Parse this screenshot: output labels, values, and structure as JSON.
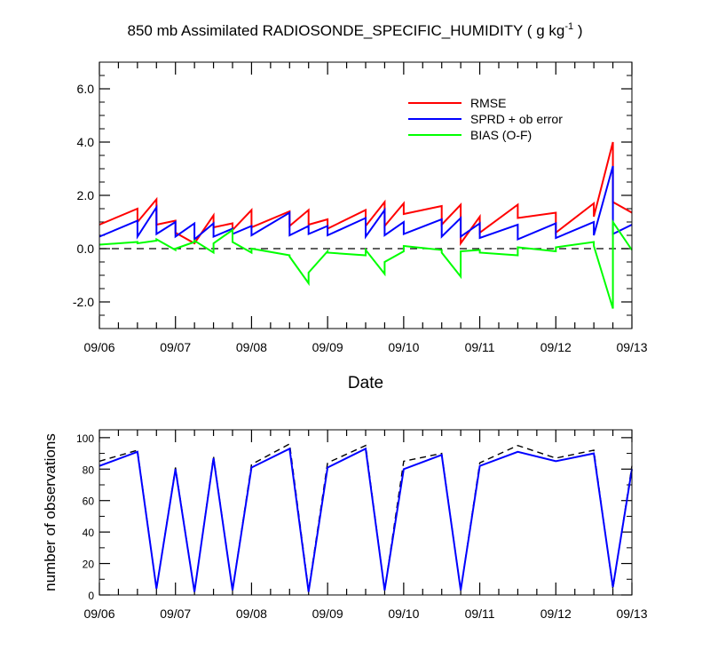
{
  "chart_data": [
    {
      "type": "line",
      "title": "850 mb Assimilated RADIOSONDE_SPECIFIC_HUMIDITY ( g kg",
      "title_sup": "-1",
      "title_end": " )",
      "xlabel": "Date",
      "ylabel": "",
      "x_tick_labels": [
        "09/06",
        "09/07",
        "09/08",
        "09/09",
        "09/10",
        "09/11",
        "09/12",
        "09/13"
      ],
      "y_tick_labels": [
        "6.0",
        "4.0",
        "2.0",
        "0.0",
        "-2.0"
      ],
      "y_tick_values": [
        6,
        4,
        2,
        0,
        -2
      ],
      "xlim": [
        0,
        7
      ],
      "ylim": [
        -3,
        7
      ],
      "legend": [
        "RMSE",
        "SPRD + ob error",
        "BIAS (O-F)"
      ],
      "legend_position": "top-right",
      "reference_line": 0,
      "series": [
        {
          "name": "RMSE",
          "color": "#ff0000",
          "points": [
            [
              0,
              0.9
            ],
            [
              0.5,
              1.5
            ],
            [
              0.5,
              1.0
            ],
            [
              0.75,
              1.85
            ],
            [
              0.75,
              0.9
            ],
            [
              1.0,
              1.05
            ],
            [
              1.0,
              0.6
            ],
            [
              1.25,
              0.2
            ],
            [
              1.5,
              1.25
            ],
            [
              1.5,
              0.8
            ],
            [
              1.75,
              0.95
            ],
            [
              1.75,
              0.7
            ],
            [
              2.0,
              1.45
            ],
            [
              2.0,
              0.8
            ],
            [
              2.5,
              1.4
            ],
            [
              2.5,
              0.85
            ],
            [
              2.75,
              1.45
            ],
            [
              2.75,
              0.9
            ],
            [
              3.0,
              1.1
            ],
            [
              3.0,
              0.75
            ],
            [
              3.5,
              1.45
            ],
            [
              3.5,
              0.85
            ],
            [
              3.75,
              1.75
            ],
            [
              3.75,
              0.85
            ],
            [
              4.0,
              1.7
            ],
            [
              4.0,
              1.3
            ],
            [
              4.5,
              1.6
            ],
            [
              4.5,
              0.9
            ],
            [
              4.75,
              1.65
            ],
            [
              4.75,
              0.2
            ],
            [
              5.0,
              1.2
            ],
            [
              5.0,
              0.6
            ],
            [
              5.5,
              1.65
            ],
            [
              5.5,
              1.15
            ],
            [
              6.0,
              1.35
            ],
            [
              6.0,
              0.6
            ],
            [
              6.5,
              1.7
            ],
            [
              6.5,
              1.2
            ],
            [
              6.75,
              4.0
            ],
            [
              6.75,
              1.75
            ],
            [
              7.0,
              1.35
            ]
          ]
        },
        {
          "name": "SPRD + ob error",
          "color": "#0000ff",
          "points": [
            [
              0,
              0.45
            ],
            [
              0.5,
              1.05
            ],
            [
              0.5,
              0.45
            ],
            [
              0.75,
              1.55
            ],
            [
              0.75,
              0.55
            ],
            [
              1.0,
              1.0
            ],
            [
              1.0,
              0.45
            ],
            [
              1.25,
              0.95
            ],
            [
              1.25,
              0.35
            ],
            [
              1.5,
              0.95
            ],
            [
              1.5,
              0.45
            ],
            [
              1.75,
              0.75
            ],
            [
              1.75,
              0.55
            ],
            [
              2.0,
              0.85
            ],
            [
              2.0,
              0.5
            ],
            [
              2.5,
              1.35
            ],
            [
              2.5,
              0.5
            ],
            [
              2.75,
              0.85
            ],
            [
              2.75,
              0.55
            ],
            [
              3.0,
              0.85
            ],
            [
              3.0,
              0.5
            ],
            [
              3.5,
              1.15
            ],
            [
              3.5,
              0.45
            ],
            [
              3.75,
              1.45
            ],
            [
              3.75,
              0.5
            ],
            [
              4.0,
              1.0
            ],
            [
              4.0,
              0.55
            ],
            [
              4.5,
              1.1
            ],
            [
              4.5,
              0.45
            ],
            [
              4.75,
              1.15
            ],
            [
              4.75,
              0.45
            ],
            [
              5.0,
              0.95
            ],
            [
              5.0,
              0.4
            ],
            [
              5.5,
              0.9
            ],
            [
              5.5,
              0.35
            ],
            [
              6.0,
              0.95
            ],
            [
              6.0,
              0.4
            ],
            [
              6.5,
              1.0
            ],
            [
              6.5,
              0.5
            ],
            [
              6.75,
              3.1
            ],
            [
              6.75,
              0.55
            ],
            [
              7.0,
              0.9
            ]
          ]
        },
        {
          "name": "BIAS (O-F)",
          "color": "#00ff00",
          "points": [
            [
              0,
              0.15
            ],
            [
              0.5,
              0.25
            ],
            [
              0.5,
              0.2
            ],
            [
              0.75,
              0.3
            ],
            [
              0.75,
              0.35
            ],
            [
              1.0,
              -0.05
            ],
            [
              1.0,
              0.0
            ],
            [
              1.25,
              0.25
            ],
            [
              1.25,
              0.3
            ],
            [
              1.5,
              -0.15
            ],
            [
              1.5,
              0.2
            ],
            [
              1.75,
              0.7
            ],
            [
              1.75,
              0.25
            ],
            [
              2.0,
              -0.15
            ],
            [
              2.0,
              0.0
            ],
            [
              2.5,
              -0.25
            ],
            [
              2.5,
              -0.3
            ],
            [
              2.75,
              -1.3
            ],
            [
              2.75,
              -0.9
            ],
            [
              3.0,
              -0.1
            ],
            [
              3.0,
              -0.15
            ],
            [
              3.5,
              -0.25
            ],
            [
              3.5,
              -0.05
            ],
            [
              3.75,
              -0.95
            ],
            [
              3.75,
              -0.5
            ],
            [
              4.0,
              -0.1
            ],
            [
              4.0,
              0.1
            ],
            [
              4.5,
              -0.05
            ],
            [
              4.5,
              -0.15
            ],
            [
              4.75,
              -1.05
            ],
            [
              4.75,
              -0.1
            ],
            [
              5.0,
              -0.05
            ],
            [
              5.0,
              -0.15
            ],
            [
              5.5,
              -0.25
            ],
            [
              5.5,
              0.05
            ],
            [
              6.0,
              -0.1
            ],
            [
              6.0,
              0.05
            ],
            [
              6.5,
              0.25
            ],
            [
              6.5,
              0.1
            ],
            [
              6.75,
              -2.25
            ],
            [
              6.75,
              1.0
            ],
            [
              7.0,
              -0.05
            ]
          ]
        }
      ]
    },
    {
      "type": "line",
      "title": "",
      "xlabel": "",
      "ylabel": "number of observations",
      "x_tick_labels": [
        "09/06",
        "09/07",
        "09/08",
        "09/09",
        "09/10",
        "09/11",
        "09/12",
        "09/13"
      ],
      "y_tick_labels": [
        "100",
        "80",
        "60",
        "40",
        "20",
        "0"
      ],
      "y_tick_values": [
        100,
        80,
        60,
        40,
        20,
        0
      ],
      "xlim": [
        0,
        7
      ],
      "ylim": [
        0,
        105
      ],
      "series": [
        {
          "name": "number of observations (dashed)",
          "color": "#000000",
          "dashed": true,
          "points": [
            [
              0,
              85
            ],
            [
              0.5,
              92
            ],
            [
              0.75,
              4
            ],
            [
              1.0,
              81
            ],
            [
              1.25,
              2
            ],
            [
              1.5,
              88
            ],
            [
              1.75,
              3
            ],
            [
              2.0,
              83
            ],
            [
              2.5,
              96
            ],
            [
              2.75,
              3
            ],
            [
              3.0,
              84
            ],
            [
              3.5,
              95
            ],
            [
              3.75,
              3
            ],
            [
              4.0,
              85
            ],
            [
              4.5,
              90
            ],
            [
              4.75,
              3
            ],
            [
              5.0,
              84
            ],
            [
              5.5,
              95
            ],
            [
              6.0,
              87
            ],
            [
              6.5,
              92
            ],
            [
              6.75,
              4
            ],
            [
              7.0,
              82
            ]
          ]
        },
        {
          "name": "number of observations",
          "color": "#0000ff",
          "dashed": false,
          "points": [
            [
              0,
              82
            ],
            [
              0.5,
              91
            ],
            [
              0.75,
              4
            ],
            [
              1.0,
              80
            ],
            [
              1.25,
              2
            ],
            [
              1.5,
              87
            ],
            [
              1.75,
              3
            ],
            [
              2.0,
              81
            ],
            [
              2.5,
              93
            ],
            [
              2.75,
              2
            ],
            [
              3.0,
              81
            ],
            [
              3.5,
              93
            ],
            [
              3.75,
              3
            ],
            [
              4.0,
              80
            ],
            [
              4.5,
              89
            ],
            [
              4.75,
              3
            ],
            [
              5.0,
              82
            ],
            [
              5.5,
              91
            ],
            [
              6.0,
              85
            ],
            [
              6.5,
              90
            ],
            [
              6.75,
              5
            ],
            [
              7.0,
              80
            ]
          ]
        }
      ]
    }
  ]
}
